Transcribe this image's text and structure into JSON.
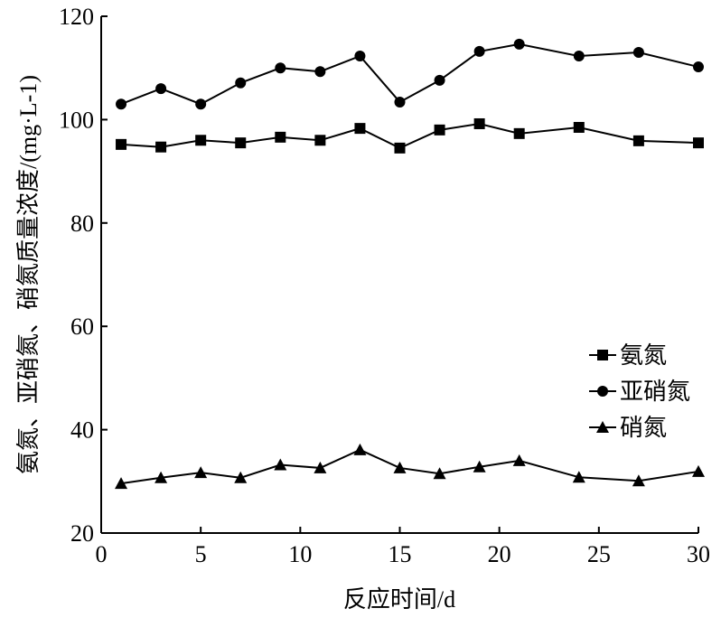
{
  "chart_data": {
    "type": "line",
    "title": "",
    "xlabel": "反应时间/d",
    "ylabel": "氨氮、亚硝氮、硝氮质量浓度/(mg·L-1)",
    "xlim": [
      0,
      30
    ],
    "ylim": [
      20,
      120
    ],
    "xticks": [
      0,
      5,
      10,
      15,
      20,
      25,
      30
    ],
    "yticks": [
      20,
      40,
      60,
      80,
      100,
      120
    ],
    "grid": false,
    "legend_position": "center-right",
    "x": [
      1,
      3,
      5,
      7,
      9,
      11,
      13,
      15,
      17,
      19,
      21,
      24,
      27,
      30
    ],
    "series": [
      {
        "name": "氨氮",
        "marker": "square",
        "values": [
          95.2,
          94.7,
          96.0,
          95.5,
          96.6,
          96.0,
          98.3,
          94.5,
          98.0,
          99.2,
          97.3,
          98.5,
          95.9,
          95.5
        ]
      },
      {
        "name": "亚硝氮",
        "marker": "circle",
        "values": [
          103.0,
          106.0,
          103.0,
          107.1,
          110.0,
          109.3,
          112.3,
          103.4,
          107.6,
          113.2,
          114.6,
          112.3,
          113.0,
          110.2
        ]
      },
      {
        "name": "硝氮",
        "marker": "triangle",
        "values": [
          29.6,
          30.7,
          31.7,
          30.7,
          33.2,
          32.6,
          36.1,
          32.6,
          31.5,
          32.8,
          34.0,
          30.8,
          30.1,
          31.9
        ]
      }
    ]
  }
}
